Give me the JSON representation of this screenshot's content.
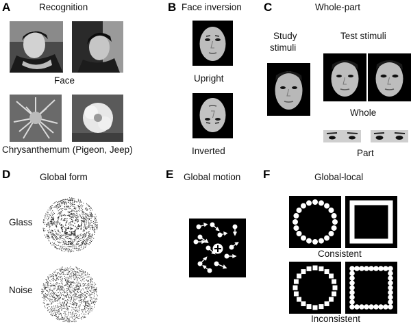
{
  "panels": {
    "A": {
      "letter": "A",
      "title": "Recognition",
      "face_caption": "Face",
      "flower_caption": "Chrysanthemum (Pigeon, Jeep)"
    },
    "B": {
      "letter": "B",
      "title": "Face inversion",
      "upright_caption": "Upright",
      "inverted_caption": "Inverted"
    },
    "C": {
      "letter": "C",
      "title": "Whole-part",
      "study_label_line1": "Study",
      "study_label_line2": "stimuli",
      "test_label": "Test stimuli",
      "whole_caption": "Whole",
      "part_caption": "Part"
    },
    "D": {
      "letter": "D",
      "title": "Global form",
      "glass_label": "Glass",
      "noise_label": "Noise"
    },
    "E": {
      "letter": "E",
      "title": "Global motion"
    },
    "F": {
      "letter": "F",
      "title": "Global-local",
      "consistent_caption": "Consistent",
      "inconsistent_caption": "Inconsistent"
    }
  },
  "colors": {
    "background": "#ffffff",
    "stimulus_background": "#000000",
    "element_fill": "#ffffff",
    "photo_gray": "#777777"
  }
}
